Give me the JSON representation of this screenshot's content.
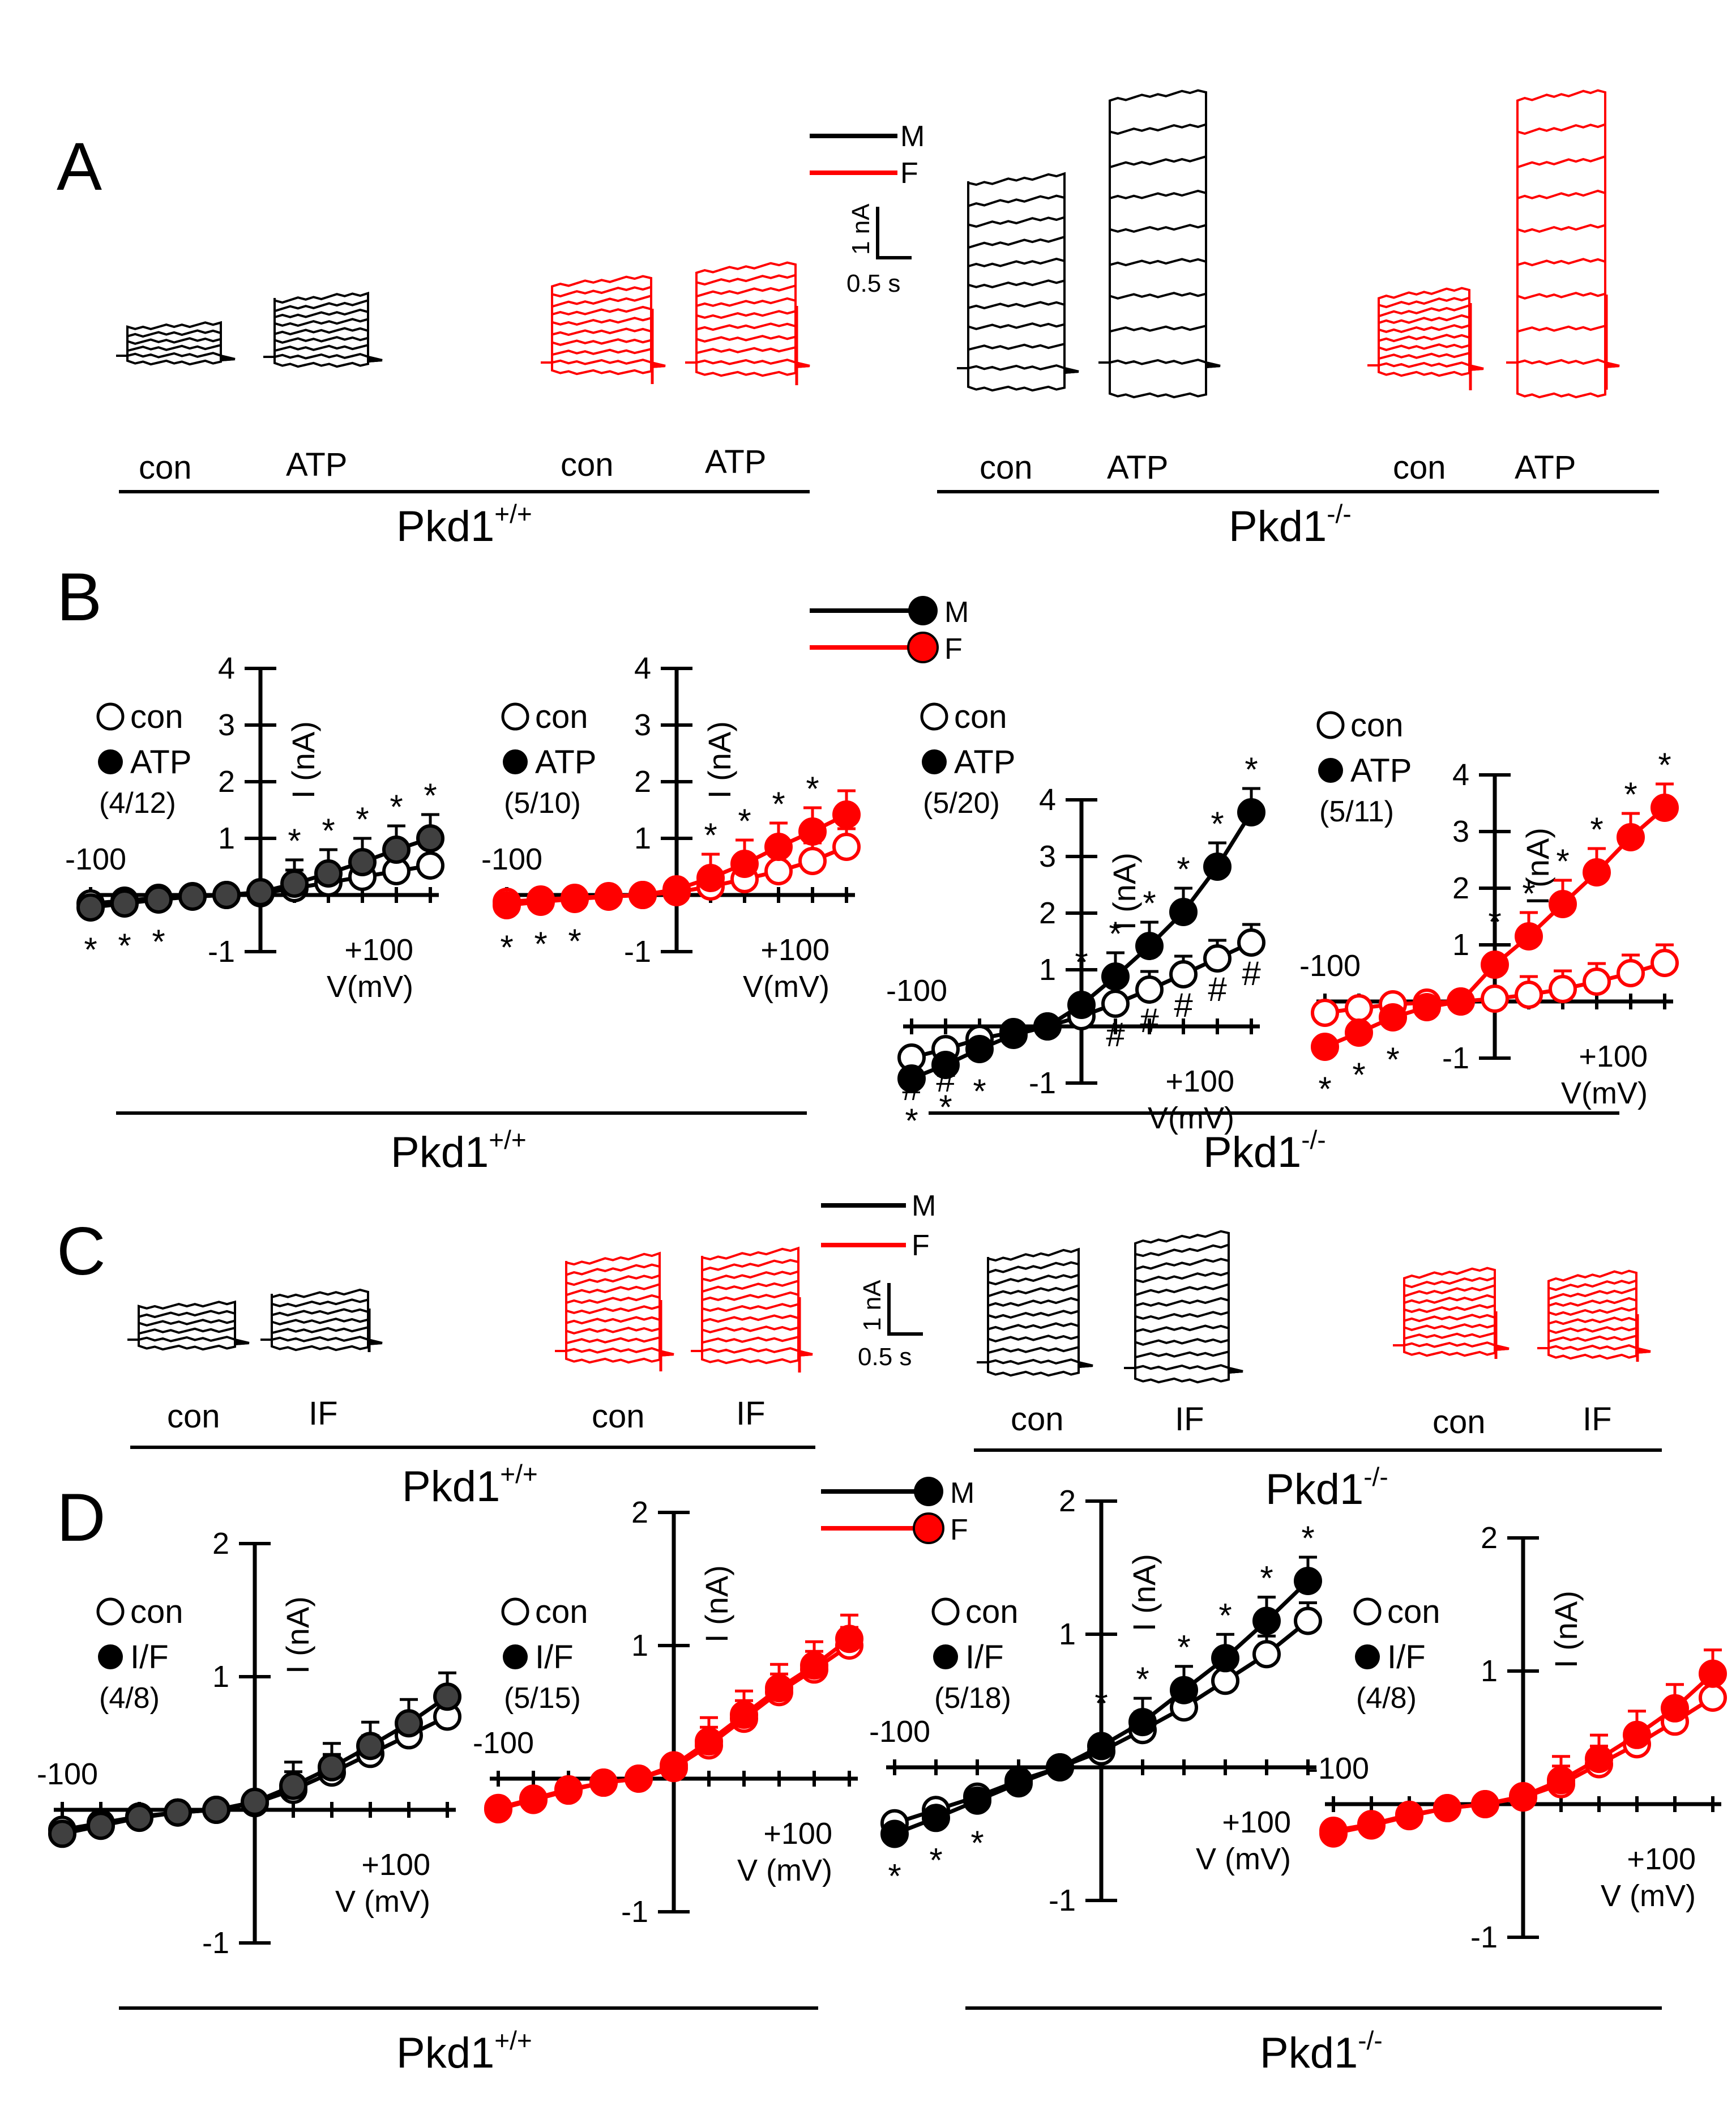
{
  "figure": {
    "panel_labels": [
      "A",
      "B",
      "C",
      "D"
    ],
    "genotypes": {
      "wt": "Pkd1",
      "wt_sup": "+/+",
      "ko": "Pkd1",
      "ko_sup": "-/-"
    },
    "trace_legend": {
      "male": "M",
      "female": "F"
    },
    "scale_bar": {
      "current": "1 nA",
      "time": "0.5 s"
    },
    "colors": {
      "male": "#000000",
      "female": "#ff0000",
      "male_atp_fill": "#404040"
    }
  },
  "panel_a": {
    "groups": [
      {
        "sex": "male",
        "genotype": "wt",
        "labels": [
          "con",
          "ATP"
        ]
      },
      {
        "sex": "female",
        "genotype": "wt",
        "labels": [
          "con",
          "ATP"
        ]
      },
      {
        "sex": "male",
        "genotype": "ko",
        "labels": [
          "con",
          "ATP"
        ]
      },
      {
        "sex": "female",
        "genotype": "ko",
        "labels": [
          "con",
          "ATP"
        ]
      }
    ]
  },
  "panel_c": {
    "groups": [
      {
        "sex": "male",
        "genotype": "wt",
        "labels": [
          "con",
          "IF"
        ]
      },
      {
        "sex": "female",
        "genotype": "wt",
        "labels": [
          "con",
          "IF"
        ]
      },
      {
        "sex": "male",
        "genotype": "ko",
        "labels": [
          "con",
          "IF"
        ]
      },
      {
        "sex": "female",
        "genotype": "ko",
        "labels": [
          "con",
          "IF"
        ]
      }
    ]
  },
  "chart_data": [
    {
      "id": "B1",
      "type": "line",
      "color": "male",
      "xlabel": "V(mV)",
      "ylabel": "I (nA)",
      "xtick_left": "-100",
      "xtick_right": "+100",
      "ylim": [
        -1,
        4
      ],
      "yticks": [
        "-1",
        "1",
        "2",
        "3",
        "4"
      ],
      "legend": [
        "con",
        "ATP",
        "(4/12)"
      ],
      "x": [
        -100,
        -80,
        -60,
        -40,
        -20,
        0,
        20,
        40,
        60,
        80,
        100
      ],
      "series": [
        {
          "name": "con",
          "values": [
            -0.15,
            -0.1,
            -0.05,
            -0.02,
            0.0,
            0.03,
            0.12,
            0.22,
            0.32,
            0.42,
            0.52
          ]
        },
        {
          "name": "ATP",
          "values": [
            -0.22,
            -0.15,
            -0.08,
            -0.03,
            0.0,
            0.05,
            0.2,
            0.38,
            0.58,
            0.8,
            1.0
          ]
        }
      ],
      "markers": [
        "*",
        "*",
        "*",
        "*",
        "*",
        "*",
        "*",
        "*"
      ]
    },
    {
      "id": "B2",
      "type": "line",
      "color": "female",
      "xlabel": "V(mV)",
      "ylabel": "I (nA)",
      "xtick_left": "-100",
      "xtick_right": "+100",
      "ylim": [
        -1,
        4
      ],
      "yticks": [
        "-1",
        "1",
        "2",
        "3",
        "4"
      ],
      "legend": [
        "con",
        "ATP",
        "(5/10)"
      ],
      "x": [
        -100,
        -80,
        -60,
        -40,
        -20,
        0,
        20,
        40,
        60,
        80,
        100
      ],
      "series": [
        {
          "name": "con",
          "values": [
            -0.12,
            -0.08,
            -0.05,
            -0.02,
            0.0,
            0.05,
            0.15,
            0.28,
            0.42,
            0.6,
            0.85
          ]
        },
        {
          "name": "ATP",
          "values": [
            -0.18,
            -0.12,
            -0.07,
            -0.03,
            0.0,
            0.1,
            0.3,
            0.55,
            0.85,
            1.12,
            1.42
          ]
        }
      ],
      "markers": [
        "*",
        "*",
        "*",
        "*",
        "*",
        "*",
        "*"
      ]
    },
    {
      "id": "B3",
      "type": "line",
      "color": "male",
      "xlabel": "V(mV)",
      "ylabel": "I (nA)",
      "xtick_left": "-100",
      "xtick_right": "+100",
      "ylim": [
        -1,
        4
      ],
      "yticks": [
        "-1",
        "1",
        "2",
        "3",
        "4"
      ],
      "legend": [
        "con",
        "ATP",
        "(5/20)"
      ],
      "x": [
        -100,
        -80,
        -60,
        -40,
        -20,
        0,
        20,
        40,
        60,
        80,
        100
      ],
      "series": [
        {
          "name": "con",
          "values": [
            -0.55,
            -0.4,
            -0.22,
            -0.1,
            0.0,
            0.18,
            0.4,
            0.65,
            0.92,
            1.2,
            1.48
          ]
        },
        {
          "name": "ATP",
          "values": [
            -0.92,
            -0.68,
            -0.4,
            -0.15,
            0.0,
            0.38,
            0.88,
            1.42,
            2.02,
            2.82,
            3.78
          ]
        }
      ],
      "markers": [
        "*",
        "*",
        "*",
        "*",
        "*",
        "*",
        "*",
        "*",
        "*",
        "#",
        "#",
        "#",
        "#",
        "#",
        "#",
        "#"
      ]
    },
    {
      "id": "B4",
      "type": "line",
      "color": "female",
      "xlabel": "V(mV)",
      "ylabel": "I (nA)",
      "xtick_left": "-100",
      "xtick_right": "+100",
      "ylim": [
        -1,
        4
      ],
      "yticks": [
        "-1",
        "1",
        "2",
        "3",
        "4"
      ],
      "legend": [
        "con",
        "ATP",
        "(5/11)"
      ],
      "x": [
        -100,
        -80,
        -60,
        -40,
        -20,
        0,
        20,
        40,
        60,
        80,
        100
      ],
      "series": [
        {
          "name": "con",
          "values": [
            -0.2,
            -0.12,
            -0.05,
            -0.02,
            0.0,
            0.05,
            0.12,
            0.22,
            0.35,
            0.5,
            0.68
          ]
        },
        {
          "name": "ATP",
          "values": [
            -0.8,
            -0.55,
            -0.28,
            -0.1,
            0.0,
            0.65,
            1.15,
            1.72,
            2.28,
            2.9,
            3.42
          ]
        }
      ],
      "markers": [
        "*",
        "*",
        "*",
        "*",
        "*",
        "*",
        "*",
        "*",
        "*"
      ]
    },
    {
      "id": "D1",
      "type": "line",
      "color": "male",
      "xlabel": "V (mV)",
      "ylabel": "I (nA)",
      "xtick_left": "-100",
      "xtick_right": "+100",
      "ylim": [
        -1,
        2
      ],
      "yticks": [
        "-1",
        "1",
        "2"
      ],
      "legend": [
        "con",
        "I/F",
        "(4/8)"
      ],
      "x": [
        -100,
        -80,
        -60,
        -40,
        -20,
        0,
        20,
        40,
        60,
        80,
        100
      ],
      "series": [
        {
          "name": "con",
          "values": [
            -0.15,
            -0.1,
            -0.05,
            -0.02,
            0.0,
            0.05,
            0.15,
            0.28,
            0.42,
            0.56,
            0.7
          ]
        },
        {
          "name": "I/F",
          "values": [
            -0.18,
            -0.12,
            -0.06,
            -0.02,
            0.0,
            0.06,
            0.18,
            0.32,
            0.48,
            0.65,
            0.85
          ]
        }
      ],
      "markers": []
    },
    {
      "id": "D2",
      "type": "line",
      "color": "female",
      "xlabel": "V (mV)",
      "ylabel": "I (nA)",
      "xtick_left": "-100",
      "xtick_right": "+100",
      "ylim": [
        -1,
        2
      ],
      "yticks": [
        "-1",
        "1",
        "2"
      ],
      "legend": [
        "con",
        "I/F",
        "(5/15)"
      ],
      "x": [
        -100,
        -80,
        -60,
        -40,
        -20,
        0,
        20,
        40,
        60,
        80,
        100
      ],
      "series": [
        {
          "name": "con",
          "values": [
            -0.22,
            -0.15,
            -0.08,
            -0.03,
            0.0,
            0.08,
            0.25,
            0.45,
            0.65,
            0.82,
            1.0
          ]
        },
        {
          "name": "I/F",
          "values": [
            -0.23,
            -0.16,
            -0.09,
            -0.03,
            0.0,
            0.1,
            0.28,
            0.48,
            0.68,
            0.85,
            1.05
          ]
        }
      ],
      "markers": []
    },
    {
      "id": "D3",
      "type": "line",
      "color": "male",
      "xlabel": "V (mV)",
      "ylabel": "I (nA)",
      "xtick_left": "-100",
      "xtick_right": "+100",
      "ylim": [
        -1,
        2
      ],
      "yticks": [
        "-1",
        "1",
        "2"
      ],
      "legend": [
        "con",
        "I/F",
        "(5/18)"
      ],
      "x": [
        -100,
        -80,
        -60,
        -40,
        -20,
        0,
        20,
        40,
        60,
        80,
        100
      ],
      "series": [
        {
          "name": "con",
          "values": [
            -0.42,
            -0.32,
            -0.22,
            -0.1,
            0.0,
            0.12,
            0.28,
            0.45,
            0.65,
            0.85,
            1.1
          ]
        },
        {
          "name": "I/F",
          "values": [
            -0.5,
            -0.38,
            -0.25,
            -0.12,
            0.0,
            0.16,
            0.34,
            0.58,
            0.82,
            1.1,
            1.4
          ]
        }
      ],
      "markers": [
        "*",
        "*",
        "*",
        "*",
        "*",
        "*",
        "*",
        "*",
        "*"
      ]
    },
    {
      "id": "D4",
      "type": "line",
      "color": "female",
      "xlabel": "V (mV)",
      "ylabel": "I (nA)",
      "xtick_left": "-100",
      "xtick_right": "+100",
      "ylim": [
        -1,
        2
      ],
      "yticks": [
        "-1",
        "1",
        "2"
      ],
      "legend": [
        "con",
        "I/F",
        "(4/8)"
      ],
      "x": [
        -100,
        -80,
        -60,
        -40,
        -20,
        0,
        20,
        40,
        60,
        80,
        100
      ],
      "series": [
        {
          "name": "con",
          "values": [
            -0.2,
            -0.15,
            -0.08,
            -0.03,
            0.0,
            0.05,
            0.15,
            0.3,
            0.45,
            0.62,
            0.8
          ]
        },
        {
          "name": "I/F",
          "values": [
            -0.22,
            -0.16,
            -0.09,
            -0.03,
            0.0,
            0.06,
            0.18,
            0.34,
            0.52,
            0.72,
            0.98
          ]
        }
      ],
      "markers": []
    }
  ]
}
